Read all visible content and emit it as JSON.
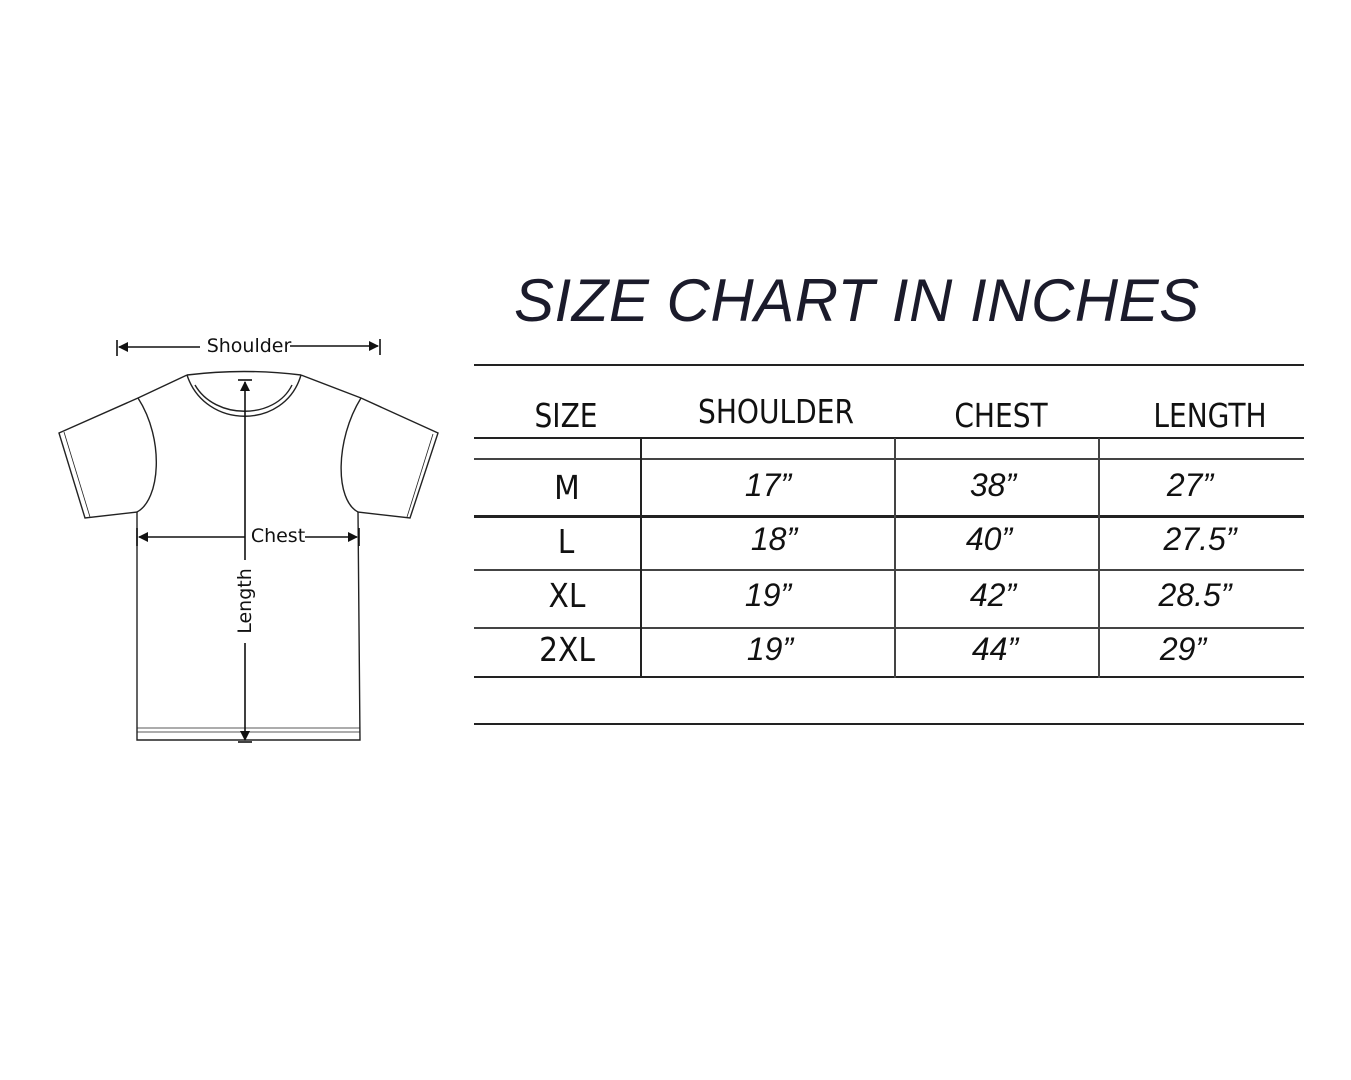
{
  "diagram": {
    "labels": {
      "shoulder": "Shoulder",
      "chest": "Chest",
      "length": "Length"
    }
  },
  "chart": {
    "title": "SIZE CHART IN INCHES",
    "columns": [
      "SIZE",
      "SHOULDER",
      "CHEST",
      "LENGTH"
    ],
    "rows": [
      {
        "size": "M",
        "shoulder": "17”",
        "chest": "38”",
        "length": "27”"
      },
      {
        "size": "L",
        "shoulder": "18”",
        "chest": "40”",
        "length": "27.5”"
      },
      {
        "size": "XL",
        "shoulder": "19”",
        "chest": "42”",
        "length": "28.5”"
      },
      {
        "size": "2XL",
        "shoulder": "19”",
        "chest": "44”",
        "length": "29”"
      }
    ]
  }
}
